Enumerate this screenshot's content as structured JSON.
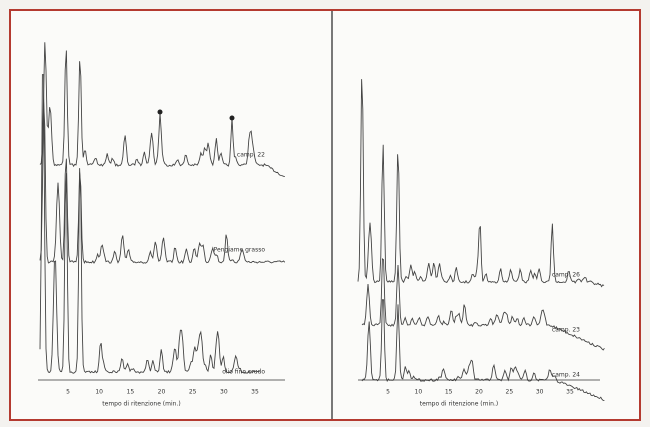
{
  "left_panel": {
    "traces": [
      {
        "label": "camp. 22"
      },
      {
        "label": "Pengiame grasso"
      },
      {
        "label": "olio fino crudo"
      }
    ],
    "x_ticks": [
      "5",
      "10",
      "15",
      "20",
      "25",
      "30",
      "35"
    ],
    "x_axis_label": "tempo di ritenzione (min.)"
  },
  "right_panel": {
    "traces": [
      {
        "label": "camp. 26"
      },
      {
        "label": "camp. 23"
      },
      {
        "label": "camp. 24"
      }
    ],
    "x_ticks": [
      "5",
      "10",
      "15",
      "20",
      "25",
      "30",
      "35"
    ],
    "x_axis_label": "tempo di ritenzione (min.)"
  }
}
